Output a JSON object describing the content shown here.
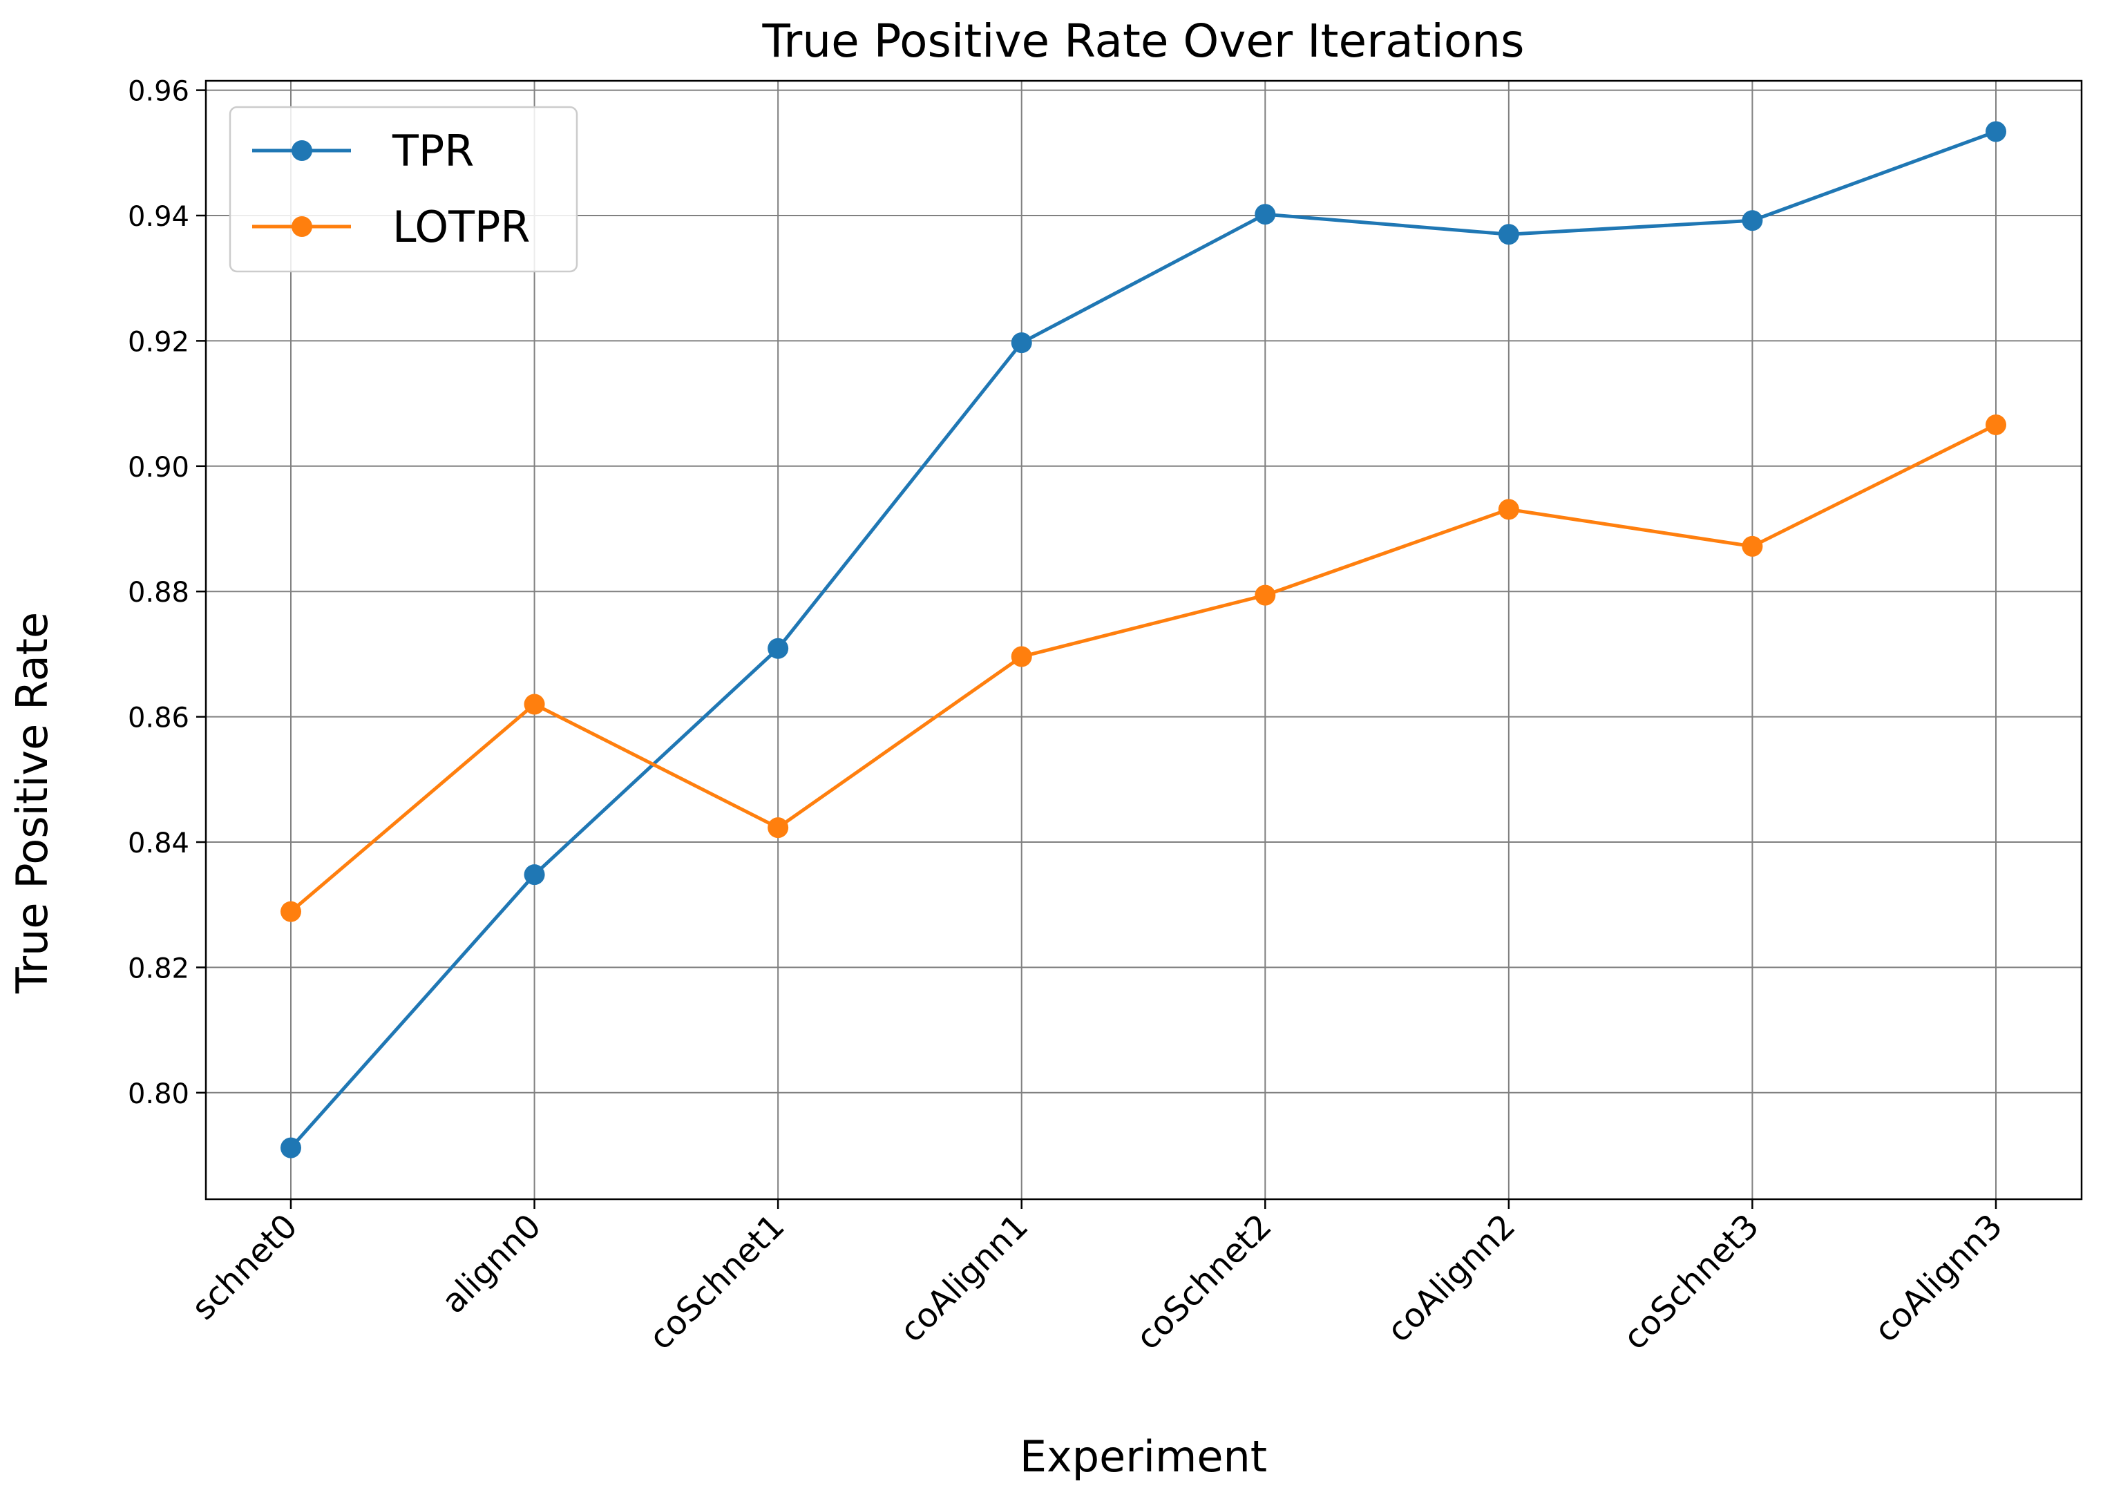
{
  "chart_data": {
    "type": "line",
    "title": "True Positive Rate Over Iterations",
    "xlabel": "Experiment",
    "ylabel": "True Positive Rate",
    "categories": [
      "schnet0",
      "alignn0",
      "coSchnet1",
      "coAlignn1",
      "coSchnet2",
      "coAlignn2",
      "coSchnet3",
      "coAlignn3"
    ],
    "series": [
      {
        "name": "TPR",
        "color": "#1f77b4",
        "values": [
          0.7912,
          0.8348,
          0.8709,
          0.9197,
          0.9402,
          0.937,
          0.9392,
          0.9534
        ]
      },
      {
        "name": "LOTPR",
        "color": "#ff7f0e",
        "values": [
          0.8289,
          0.862,
          0.8423,
          0.8696,
          0.8794,
          0.8931,
          0.8872,
          0.9066
        ]
      }
    ],
    "ylim": [
      0.783,
      0.9615
    ],
    "yticks": [
      "0.80",
      "0.82",
      "0.84",
      "0.86",
      "0.88",
      "0.90",
      "0.92",
      "0.94",
      "0.96"
    ],
    "grid": true,
    "legend_position": "upper-left"
  }
}
